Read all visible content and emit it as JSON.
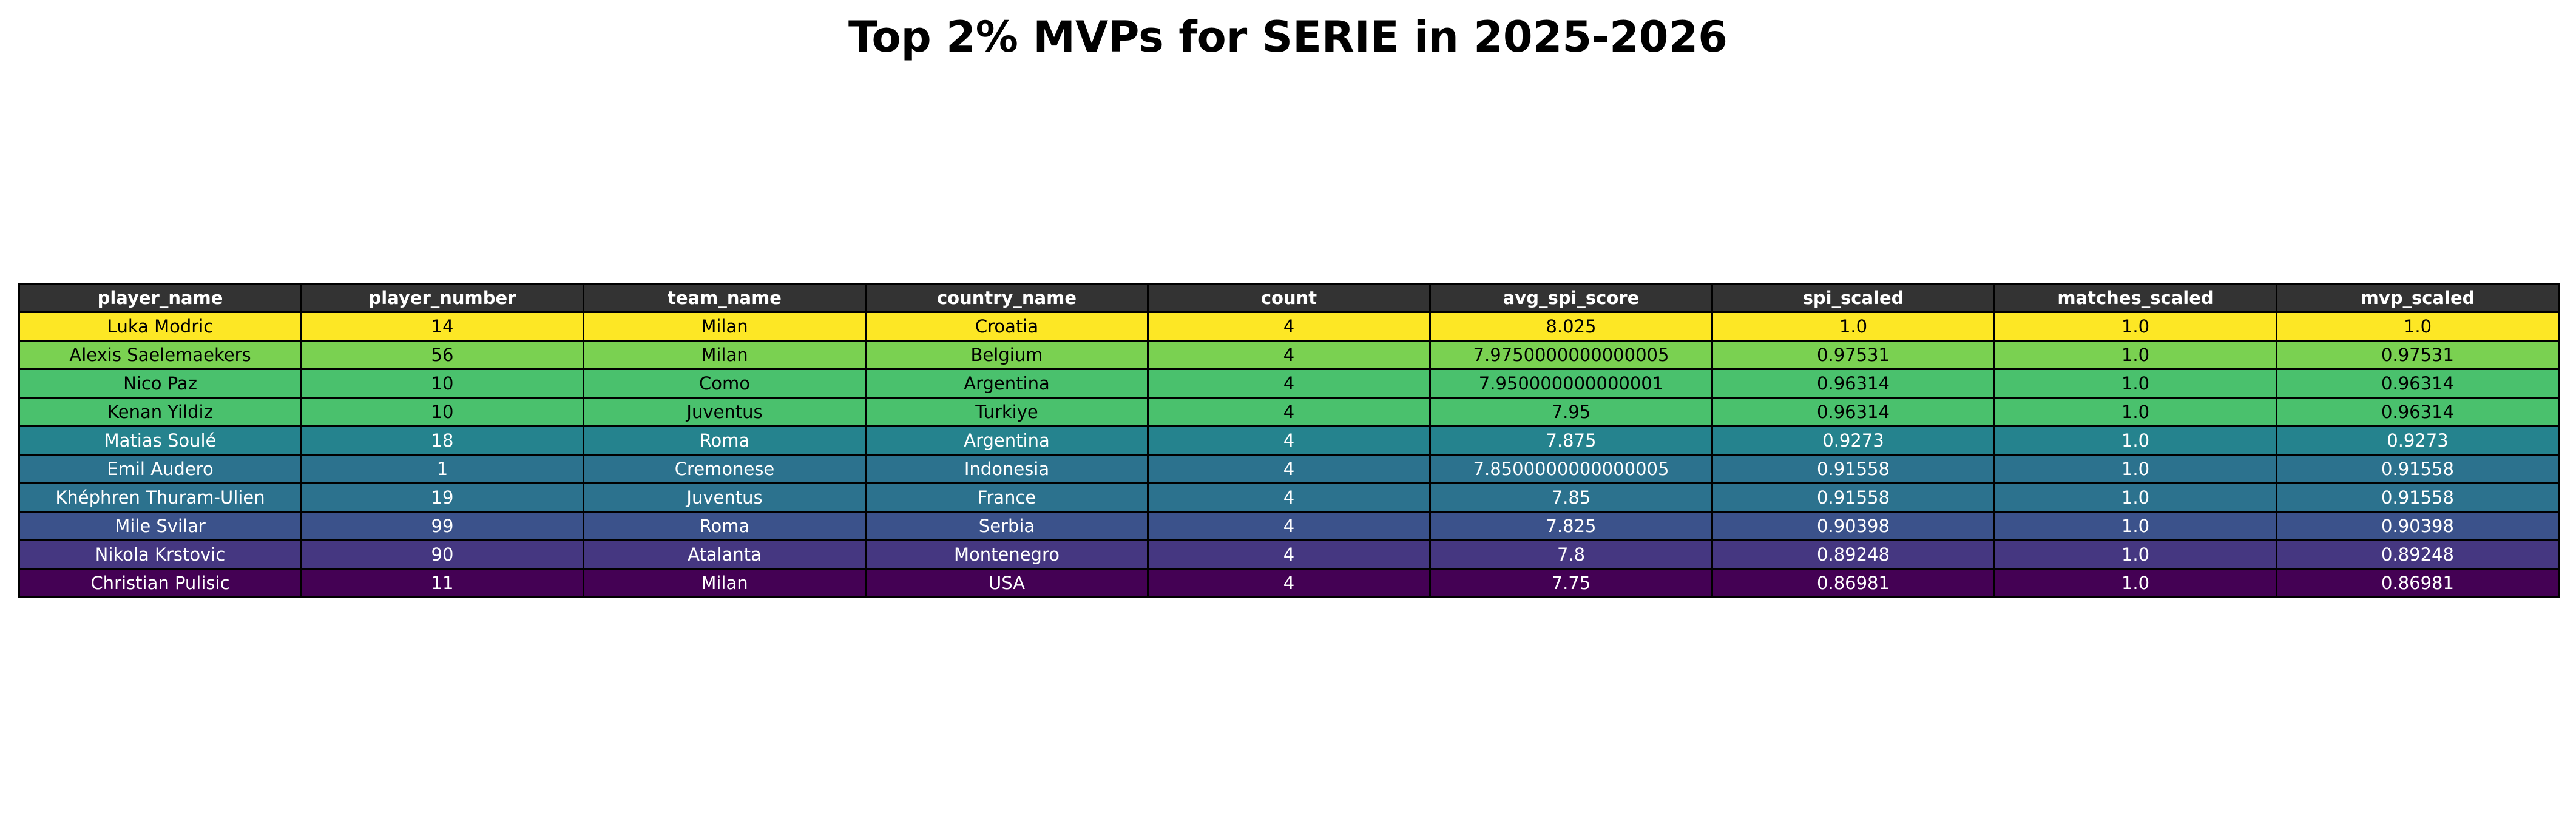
{
  "chart_data": {
    "type": "table",
    "title": "Top 2% MVPs for SERIE in 2025-2026",
    "columns": [
      "player_name",
      "player_number",
      "team_name",
      "country_name",
      "count",
      "avg_spi_score",
      "spi_scaled",
      "matches_scaled",
      "mvp_scaled"
    ],
    "rows": [
      {
        "cells": [
          "Luka Modric",
          "14",
          "Milan",
          "Croatia",
          "4",
          "8.025",
          "1.0",
          "1.0",
          "1.0"
        ],
        "bg": "#fde725",
        "fg": "#000000"
      },
      {
        "cells": [
          "Alexis Saelemaekers",
          "56",
          "Milan",
          "Belgium",
          "4",
          "7.9750000000000005",
          "0.97531",
          "1.0",
          "0.97531"
        ],
        "bg": "#7ad151",
        "fg": "#000000"
      },
      {
        "cells": [
          "Nico Paz",
          "10",
          "Como",
          "Argentina",
          "4",
          "7.950000000000001",
          "0.96314",
          "1.0",
          "0.96314"
        ],
        "bg": "#4ac16d",
        "fg": "#000000"
      },
      {
        "cells": [
          "Kenan Yildiz",
          "10",
          "Juventus",
          "Turkiye",
          "4",
          "7.95",
          "0.96314",
          "1.0",
          "0.96314"
        ],
        "bg": "#4ac16d",
        "fg": "#000000"
      },
      {
        "cells": [
          "Matias Soulé",
          "18",
          "Roma",
          "Argentina",
          "4",
          "7.875",
          "0.9273",
          "1.0",
          "0.9273"
        ],
        "bg": "#25838e",
        "fg": "#ffffff"
      },
      {
        "cells": [
          "Emil Audero",
          "1",
          "Cremonese",
          "Indonesia",
          "4",
          "7.8500000000000005",
          "0.91558",
          "1.0",
          "0.91558"
        ],
        "bg": "#2c728e",
        "fg": "#ffffff"
      },
      {
        "cells": [
          "Khéphren Thuram-Ulien",
          "19",
          "Juventus",
          "France",
          "4",
          "7.85",
          "0.91558",
          "1.0",
          "0.91558"
        ],
        "bg": "#2c728e",
        "fg": "#ffffff"
      },
      {
        "cells": [
          "Mile Svilar",
          "99",
          "Roma",
          "Serbia",
          "4",
          "7.825",
          "0.90398",
          "1.0",
          "0.90398"
        ],
        "bg": "#3b528b",
        "fg": "#ffffff"
      },
      {
        "cells": [
          "Nikola Krstovic",
          "90",
          "Atalanta",
          "Montenegro",
          "4",
          "7.8",
          "0.89248",
          "1.0",
          "0.89248"
        ],
        "bg": "#453781",
        "fg": "#ffffff"
      },
      {
        "cells": [
          "Christian Pulisic",
          "11",
          "Milan",
          "USA",
          "4",
          "7.75",
          "0.86981",
          "1.0",
          "0.86981"
        ],
        "bg": "#440154",
        "fg": "#ffffff"
      }
    ],
    "header_bg": "#333333",
    "header_fg": "#ffffff",
    "colormap": "viridis"
  }
}
